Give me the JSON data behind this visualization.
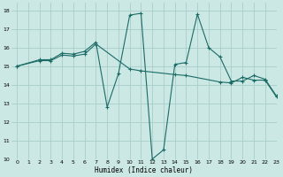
{
  "xlabel": "Humidex (Indice chaleur)",
  "bg_color": "#cce8e4",
  "grid_color": "#a8ceca",
  "line_color": "#1a6b66",
  "xlim": [
    -0.5,
    23
  ],
  "ylim": [
    10,
    18.4
  ],
  "xticks": [
    0,
    1,
    2,
    3,
    4,
    5,
    6,
    7,
    8,
    9,
    10,
    11,
    12,
    13,
    14,
    15,
    16,
    17,
    18,
    19,
    20,
    21,
    22,
    23
  ],
  "yticks": [
    10,
    11,
    12,
    13,
    14,
    15,
    16,
    17,
    18
  ],
  "series1_x": [
    0,
    2,
    3,
    4,
    5,
    6,
    7,
    8,
    9,
    10,
    11,
    12,
    13,
    14,
    15,
    16,
    17,
    18,
    19,
    20,
    21,
    22,
    23
  ],
  "series1_y": [
    15.0,
    15.35,
    15.35,
    15.7,
    15.65,
    15.8,
    16.3,
    12.8,
    14.6,
    17.75,
    17.85,
    10.0,
    10.5,
    15.1,
    15.2,
    17.8,
    16.0,
    15.5,
    14.2,
    14.2,
    14.5,
    14.3,
    13.4
  ],
  "series2_x": [
    0,
    2,
    3,
    4,
    5,
    6,
    7,
    10,
    11,
    14,
    15,
    18,
    19,
    20,
    21,
    22,
    23
  ],
  "series2_y": [
    15.0,
    15.3,
    15.3,
    15.6,
    15.55,
    15.65,
    16.2,
    14.85,
    14.75,
    14.55,
    14.5,
    14.15,
    14.1,
    14.4,
    14.25,
    14.25,
    13.35
  ]
}
